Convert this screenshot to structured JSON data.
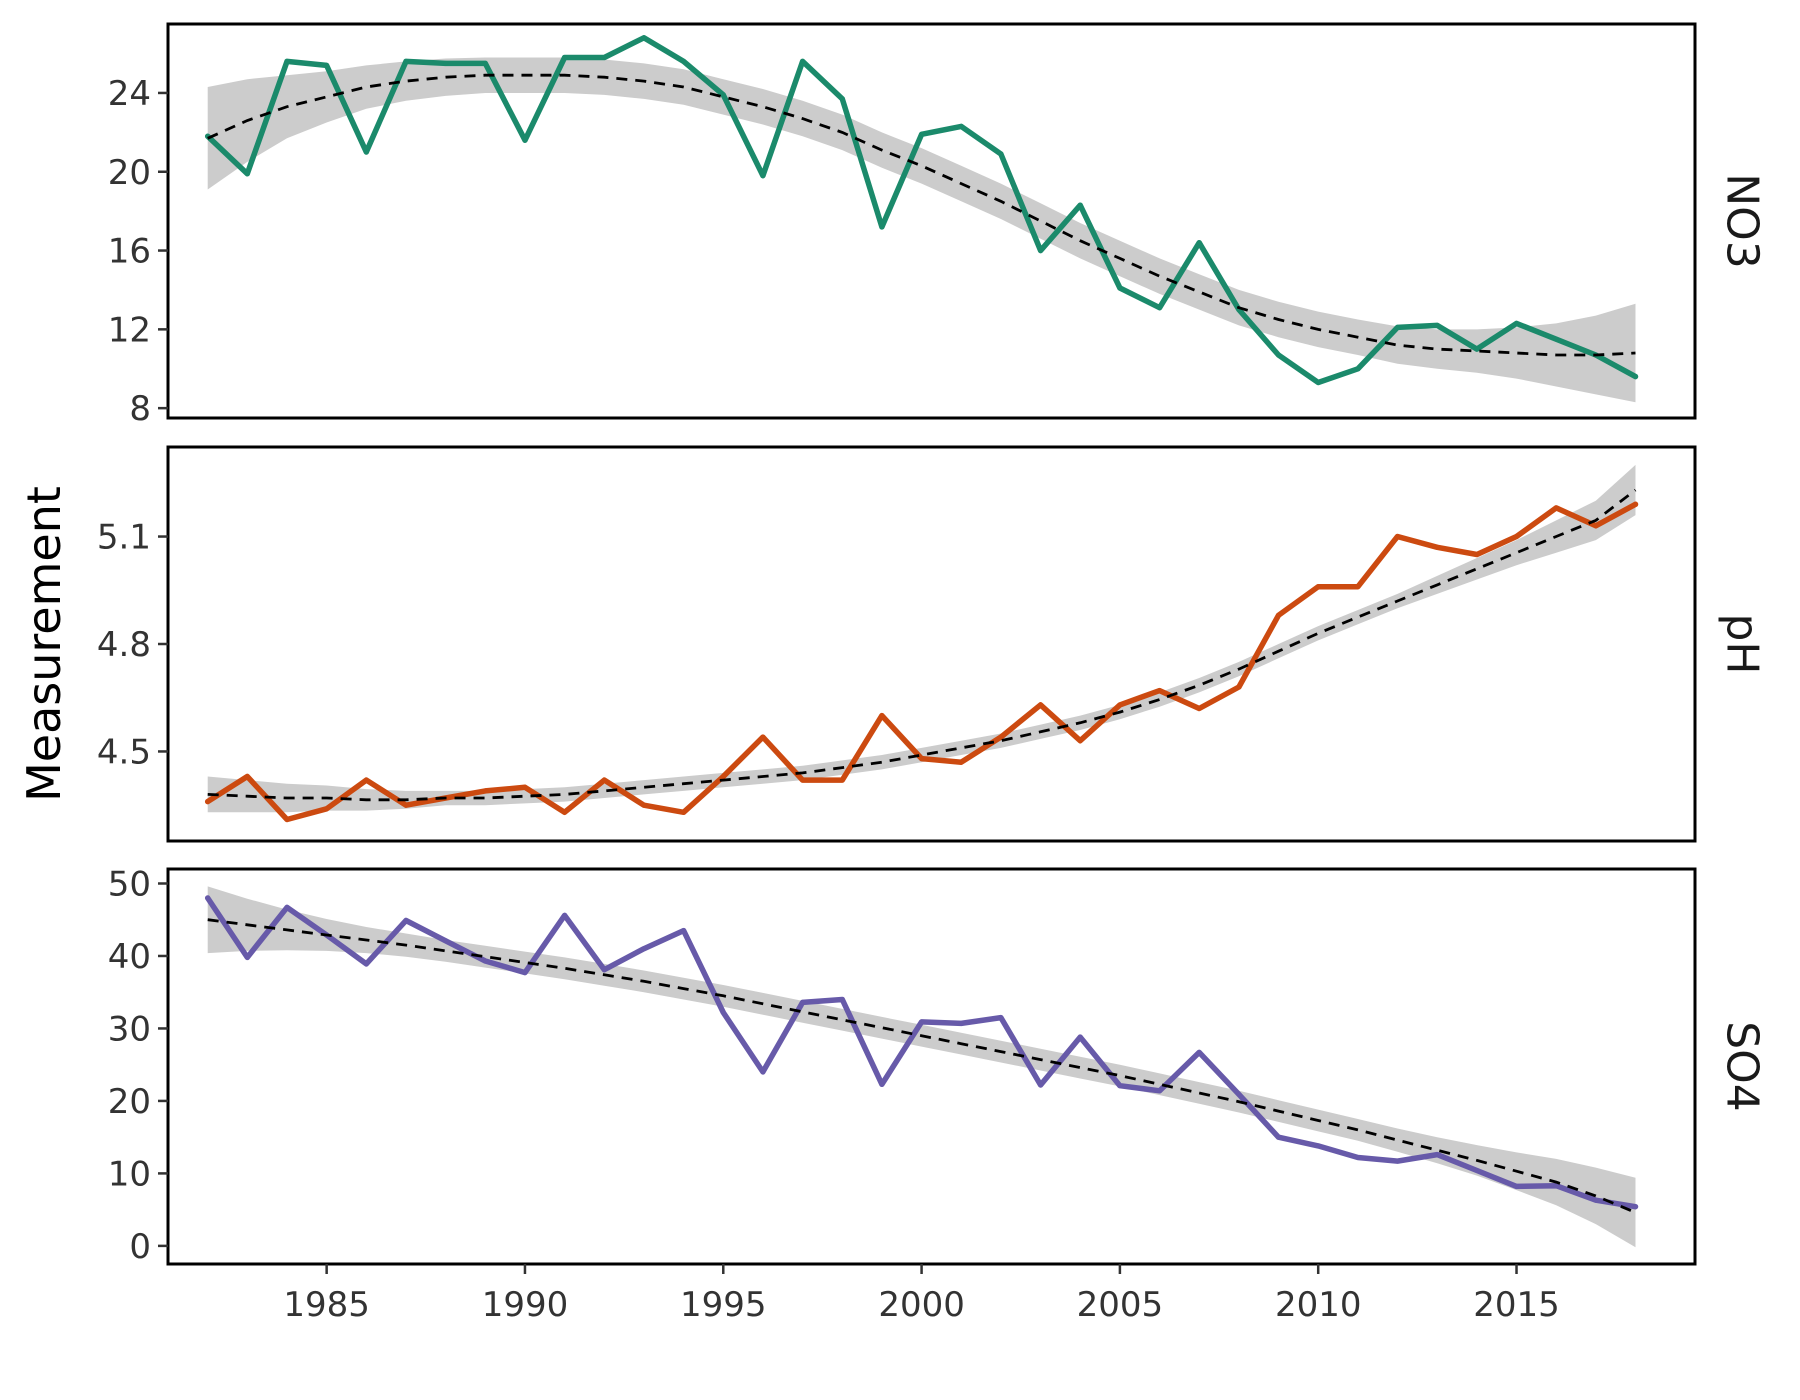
{
  "chart_data": {
    "type": "line",
    "ylabel": "Measurement",
    "xlabel": "",
    "xlim": [
      1981,
      2019.5
    ],
    "x_ticks": [
      1985,
      1990,
      1995,
      2000,
      2005,
      2010,
      2015
    ],
    "x_tick_labels": [
      "1985",
      "1990",
      "1995",
      "2000",
      "2005",
      "2010",
      "2015"
    ],
    "x": [
      1982,
      1983,
      1984,
      1985,
      1986,
      1987,
      1988,
      1989,
      1990,
      1991,
      1992,
      1993,
      1994,
      1995,
      1996,
      1997,
      1998,
      1999,
      2000,
      2001,
      2002,
      2003,
      2004,
      2005,
      2006,
      2007,
      2008,
      2009,
      2010,
      2011,
      2012,
      2013,
      2014,
      2015,
      2016,
      2017,
      2018
    ],
    "grid": false,
    "panels": [
      {
        "strip_label": "NO3",
        "color": "#1b8a6b",
        "ylim": [
          7.5,
          27.5
        ],
        "y_ticks": [
          8,
          12,
          16,
          20,
          24
        ],
        "y_tick_labels": [
          "8",
          "12",
          "16",
          "20",
          "24"
        ],
        "values": [
          21.8,
          19.9,
          25.6,
          25.4,
          21.0,
          25.6,
          25.5,
          25.5,
          21.6,
          25.8,
          25.8,
          26.8,
          25.6,
          23.9,
          19.8,
          25.6,
          23.7,
          17.2,
          21.9,
          22.3,
          20.9,
          16.0,
          18.3,
          14.1,
          13.1,
          16.4,
          13.0,
          10.7,
          9.3,
          10.0,
          12.1,
          12.2,
          11.0,
          12.3,
          11.5,
          10.7,
          9.6
        ],
        "fit": [
          21.7,
          22.6,
          23.3,
          23.8,
          24.3,
          24.6,
          24.8,
          24.9,
          24.9,
          24.9,
          24.8,
          24.6,
          24.3,
          23.8,
          23.3,
          22.7,
          22.0,
          21.1,
          20.3,
          19.4,
          18.5,
          17.5,
          16.5,
          15.6,
          14.7,
          13.9,
          13.1,
          12.5,
          12.0,
          11.6,
          11.2,
          11.0,
          10.9,
          10.8,
          10.7,
          10.7,
          10.8
        ],
        "band_half_width": [
          2.6,
          2.1,
          1.6,
          1.3,
          1.1,
          1.0,
          0.95,
          0.9,
          0.9,
          0.9,
          0.9,
          0.9,
          0.9,
          0.9,
          0.9,
          0.9,
          0.9,
          0.9,
          0.9,
          0.9,
          0.9,
          0.9,
          0.9,
          0.9,
          0.9,
          0.9,
          0.9,
          0.9,
          0.9,
          0.9,
          0.95,
          1.0,
          1.1,
          1.3,
          1.6,
          2.0,
          2.5
        ]
      },
      {
        "strip_label": "pH",
        "color": "#cc4a10",
        "ylim": [
          4.25,
          5.35
        ],
        "y_ticks": [
          4.5,
          4.8,
          5.1
        ],
        "y_tick_labels": [
          "4.5",
          "4.8",
          "5.1"
        ],
        "values": [
          4.36,
          4.43,
          4.31,
          4.34,
          4.42,
          4.35,
          4.37,
          4.39,
          4.4,
          4.33,
          4.42,
          4.35,
          4.33,
          4.43,
          4.54,
          4.42,
          4.42,
          4.6,
          4.48,
          4.47,
          4.54,
          4.63,
          4.53,
          4.63,
          4.67,
          4.62,
          4.68,
          4.88,
          4.96,
          4.96,
          5.1,
          5.07,
          5.05,
          5.1,
          5.18,
          5.13,
          5.19
        ],
        "fit": [
          4.38,
          4.375,
          4.37,
          4.37,
          4.365,
          4.365,
          4.37,
          4.37,
          4.375,
          4.38,
          4.39,
          4.4,
          4.41,
          4.42,
          4.43,
          4.44,
          4.455,
          4.47,
          4.49,
          4.51,
          4.53,
          4.555,
          4.58,
          4.61,
          4.645,
          4.685,
          4.73,
          4.78,
          4.83,
          4.875,
          4.92,
          4.965,
          5.01,
          5.055,
          5.1,
          5.145,
          5.23
        ],
        "band_half_width": [
          0.05,
          0.045,
          0.04,
          0.035,
          0.03,
          0.025,
          0.02,
          0.02,
          0.02,
          0.02,
          0.02,
          0.02,
          0.02,
          0.02,
          0.02,
          0.02,
          0.02,
          0.02,
          0.02,
          0.02,
          0.02,
          0.02,
          0.02,
          0.02,
          0.02,
          0.02,
          0.02,
          0.02,
          0.02,
          0.02,
          0.02,
          0.025,
          0.03,
          0.035,
          0.045,
          0.055,
          0.07
        ]
      },
      {
        "strip_label": "SO4",
        "color": "#675aa9",
        "ylim": [
          -2.5,
          52
        ],
        "y_ticks": [
          0,
          10,
          20,
          30,
          40,
          50
        ],
        "y_tick_labels": [
          "0",
          "10",
          "20",
          "30",
          "40",
          "50"
        ],
        "values": [
          48.0,
          39.8,
          46.7,
          42.9,
          38.9,
          44.9,
          42.1,
          39.3,
          37.7,
          45.6,
          38.1,
          41.0,
          43.5,
          32.2,
          24.0,
          33.6,
          34.0,
          22.3,
          30.9,
          30.7,
          31.5,
          22.2,
          28.8,
          22.1,
          21.4,
          26.7,
          20.9,
          15.0,
          13.8,
          12.2,
          11.7,
          12.6,
          10.4,
          8.2,
          8.3,
          6.3,
          5.4
        ],
        "fit": [
          45.0,
          44.3,
          43.6,
          42.9,
          42.2,
          41.5,
          40.7,
          39.9,
          39.1,
          38.3,
          37.4,
          36.5,
          35.5,
          34.5,
          33.4,
          32.3,
          31.2,
          30.1,
          29.0,
          27.9,
          26.8,
          25.7,
          24.6,
          23.5,
          22.3,
          21.1,
          19.9,
          18.6,
          17.3,
          16.0,
          14.6,
          13.2,
          11.8,
          10.3,
          8.8,
          6.9,
          4.6
        ],
        "band_half_width": [
          4.6,
          3.6,
          2.8,
          2.2,
          1.8,
          1.6,
          1.5,
          1.5,
          1.5,
          1.5,
          1.5,
          1.5,
          1.5,
          1.5,
          1.5,
          1.5,
          1.5,
          1.5,
          1.5,
          1.5,
          1.5,
          1.5,
          1.5,
          1.5,
          1.5,
          1.5,
          1.5,
          1.5,
          1.5,
          1.5,
          1.6,
          1.8,
          2.1,
          2.6,
          3.2,
          3.9,
          4.8
        ]
      }
    ]
  }
}
